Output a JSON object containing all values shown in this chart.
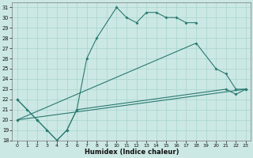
{
  "xlabel": "Humidex (Indice chaleur)",
  "ylabel": "",
  "bg_color": "#cce8e4",
  "line_color": "#2a7a72",
  "grid_color": "#a8d4ce",
  "xlim": [
    -0.5,
    23.5
  ],
  "ylim": [
    18,
    31.5
  ],
  "xticks": [
    0,
    1,
    2,
    3,
    4,
    5,
    6,
    7,
    8,
    9,
    10,
    11,
    12,
    13,
    14,
    15,
    16,
    17,
    18,
    19,
    20,
    21,
    22,
    23
  ],
  "yticks": [
    18,
    19,
    20,
    21,
    22,
    23,
    24,
    25,
    26,
    27,
    28,
    29,
    30,
    31
  ],
  "series_data": {
    "line1_x": [
      0,
      1,
      2,
      3,
      4,
      5,
      6,
      7,
      8,
      10,
      11,
      12,
      13,
      14,
      15,
      16,
      17,
      18
    ],
    "line1_y": [
      22,
      21,
      20,
      19,
      18,
      19,
      21,
      26,
      28,
      31,
      30,
      29.5,
      30.5,
      30.5,
      30,
      30,
      29.5,
      29.5
    ],
    "line2_x": [
      0,
      2,
      3,
      4,
      5,
      6,
      21,
      22,
      23
    ],
    "line2_y": [
      22,
      20,
      19,
      18,
      19,
      21,
      23,
      22.5,
      23
    ],
    "line3_x": [
      0,
      23
    ],
    "line3_y": [
      20,
      23
    ],
    "line4_x": [
      0,
      18,
      20,
      21,
      22,
      23
    ],
    "line4_y": [
      20,
      27.5,
      25,
      24.5,
      23,
      23
    ]
  }
}
